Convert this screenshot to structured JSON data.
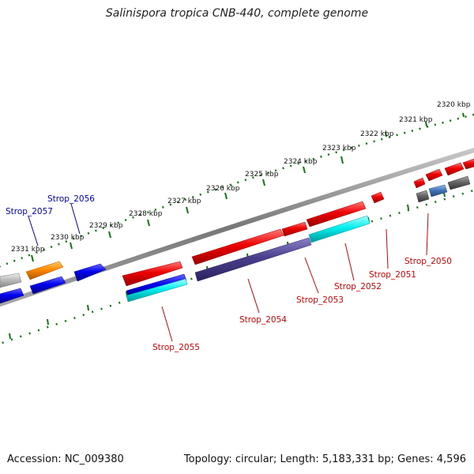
{
  "title": "Salinispora tropica CNB-440, complete genome",
  "footer": {
    "accession": "Accession: NC_009380",
    "topology": "Topology: circular; Length: 5,183,331 bp; Genes: 4,596"
  },
  "scale_labels": [
    "2320 kbp",
    "2321 kbp",
    "2322 kbp",
    "2323 kbp",
    "2324 kbp",
    "2325 kbp",
    "2326 kbp",
    "2327 kbp",
    "2328 kbp",
    "2329 kbp",
    "2330 kbp",
    "2331 kbp"
  ],
  "gene_labels": [
    {
      "text": "Strop_2050",
      "color": "#cc0000"
    },
    {
      "text": "Strop_2051",
      "color": "#cc0000"
    },
    {
      "text": "Strop_2052",
      "color": "#cc0000"
    },
    {
      "text": "Strop_2053",
      "color": "#cc0000"
    },
    {
      "text": "Strop_2054",
      "color": "#cc0000"
    },
    {
      "text": "Strop_2055",
      "color": "#cc0000"
    },
    {
      "text": "Strop_2056",
      "color": "#0000aa"
    },
    {
      "text": "Strop_2057",
      "color": "#0000aa"
    }
  ],
  "colors": {
    "backbone": "#8a8a8a",
    "tick": "#117711",
    "red": "#ee0000",
    "blue": "#0000ee",
    "orange": "#ff8800",
    "cyan": "#00eeee",
    "indigo": "#4a3f8c",
    "gray": "#666666",
    "light_gray": "#bbbbbb",
    "steel": "#4477bb"
  }
}
